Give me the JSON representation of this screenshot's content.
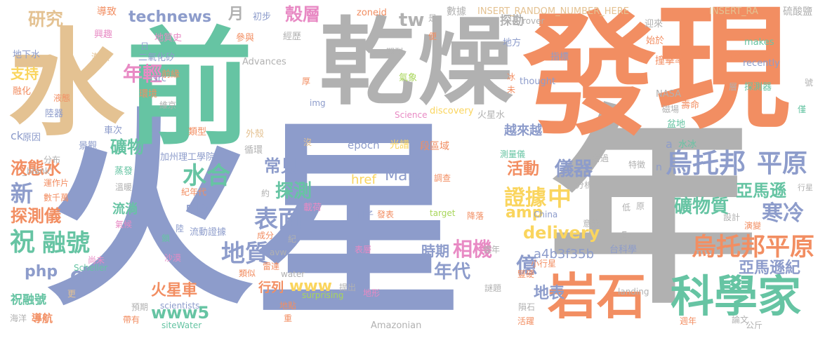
{
  "words": {
    "huo": "火",
    "xing": "星",
    "nian": "年",
    "fa": "發",
    "xian": "現",
    "shui": "水",
    "qian": "前",
    "gan": "乾",
    "zao": "燥",
    "kexuejia": "科學家",
    "yanshi": "岩石",
    "wutuobang": "烏托邦",
    "pingyuan": "平原",
    "wutuobangpingyuan": "烏托邦平原",
    "zhengju": "證據",
    "zhong": "中",
    "kuangwuzhi": "礦物質",
    "hanleng": "寒冷",
    "yamaxun": "亞馬遜",
    "yamaxunji": "亞馬遜紀",
    "delivery": "delivery",
    "amp": "amp",
    "huodong": "活動",
    "yiqi": "儀器",
    "biaomian": "表面",
    "changjian": "常見",
    "tance": "探測",
    "dizhi": "地質",
    "xiangji": "相機",
    "shiqi": "時期",
    "niandai": "年代",
    "www": "www",
    "www5": "www5",
    "mars": "Mars",
    "shuihe": "水合",
    "kuangwu": "礦物",
    "niantqing": "年輕",
    "keceng": "殼層",
    "yue": "月",
    "technews": "technews",
    "yanjiu": "研究",
    "tw": "tw",
    "zhu": "祝",
    "ronghao": "融號",
    "xin": "新",
    "yetaishui": "液態水",
    "tanceyi": "探測儀",
    "php": "php",
    "cb": "cb",
    "huoxingche": "火星車",
    "hangji": "行列",
    "yi": "億",
    "dibiao": "地表",
    "a4b3f35b": "a4b3f35b",
    "href": "href",
    "epoch": "epoch",
    "yuelaiyue": "越來越",
    "tankan": "探勘",
    "china_cn": "中國",
    "liutang": "流淌",
    "zhichi": "支持",
    "guangpu": "光譜",
    "duanquyu": "段區域",
    "zhuronghao": "祝融號",
    "insert1": "INSERT_RANDOM_NUMBER_HERE",
    "insert2": "INSERT_RA",
    "zoneid": "zoneid",
    "shuju": "數據",
    "daozhi": "導致",
    "liusuanyan": "硫酸鹽",
    "xingqi": "興趣",
    "dizhishi": "地質史",
    "chubu": "初步",
    "canyu": "參與",
    "jingli": "經歷",
    "dixiashui": "地下水",
    "erhuaxigui": "二氧化矽",
    "src": "src",
    "advances": "Advances",
    "qikan": "期刊",
    "makes": "makes",
    "recently": "recently",
    "zhuangjilv": "撞擊率",
    "kexue": "科學",
    "tanceqi": "探測器",
    "shiyu": "始於",
    "yinglai": "迎來",
    "zhibiao": "指標",
    "difang": "地方",
    "rover": "rover",
    "nasa": "NASA",
    "thought": "thought",
    "discovery": "discovery",
    "science": "Science",
    "qixiang": "氣象",
    "huoxingshui": "火星水",
    "cichang": "磁場",
    "shouming": "壽命",
    "pendi": "盆地",
    "shuibing": "水冰",
    "celiangyi": "測量儀",
    "cibing": "冰",
    "wei": "未",
    "hou": "厚",
    "img": "img",
    "chaoshi": "潮濕",
    "ronghua": "融化",
    "yetai": "液態",
    "luqi": "陸器",
    "huanjing": "環境",
    "qianyuan": "前緣",
    "weijing": "維京",
    "yuanyin": "原因",
    "ck": "ck",
    "chechi": "車次",
    "jingguan": "景觀",
    "leixing": "類型",
    "waike": "外殼",
    "xunhuan": "循環",
    "fenbu": "分布",
    "jiazhou": "加州理工學院",
    "blank": "_blank'",
    "zhengqi": "蒸發",
    "wennuan": "溫暖",
    "yunzuopian": "運作片",
    "shuqian": "數千萬",
    "qihou": "氣候",
    "jiniandai": "紀年代",
    "yue2": "約",
    "zaihe": "載荷",
    "liudong": "流動證據",
    "lu": "陸",
    "chengfen": "成分",
    "ji": "紀",
    "suo": "鎖",
    "avw": "avw",
    "shamo": "沙漠",
    "leisi": "類似",
    "leida": "雷達",
    "water": "water",
    "scheller": "Scheller",
    "shangwei": "尚未",
    "geng": "更",
    "yuqi": "預期",
    "scientists": "scientists",
    "daihang": "導航",
    "haiyang": "海洋",
    "daiyou": "帶有",
    "sitewater": "siteWater",
    "zhong2": "重",
    "surprising": "surprising",
    "didian": "地點",
    "tichu": "提出",
    "dixing": "地形",
    "biaoceng": "表層",
    "amazonian": "Amazonian",
    "rizi": "日子",
    "fabiao": "發表",
    "target": "target",
    "jiangluo": "降落",
    "china": "China",
    "diaocha": "調查",
    "fenxi": "分析",
    "mei": "沒",
    "xiaoxingxing": "小行星",
    "shubi": "豎硬",
    "yinian": "億年",
    "miti": "謎題",
    "yunshi": "隕石",
    "huoyue": "活躍",
    "landing": "landing",
    "taikexue": "台科學",
    "eva": "Eva",
    "yiyi": "意義",
    "di": "低",
    "yuan": "原",
    "sheji": "設計",
    "yanbian": "演變",
    "tezheng": "特徵",
    "kanguo": "看過",
    "zhouyear": "週年",
    "lunwen": "論文",
    "gongchi": "公斤",
    "hao": "號",
    "jin": "僅",
    "ceng": "層",
    "xingxing": "行星",
    "n": "n",
    "a": "a",
    "shi": "是",
    "bian": "便",
    "ri": "日"
  }
}
